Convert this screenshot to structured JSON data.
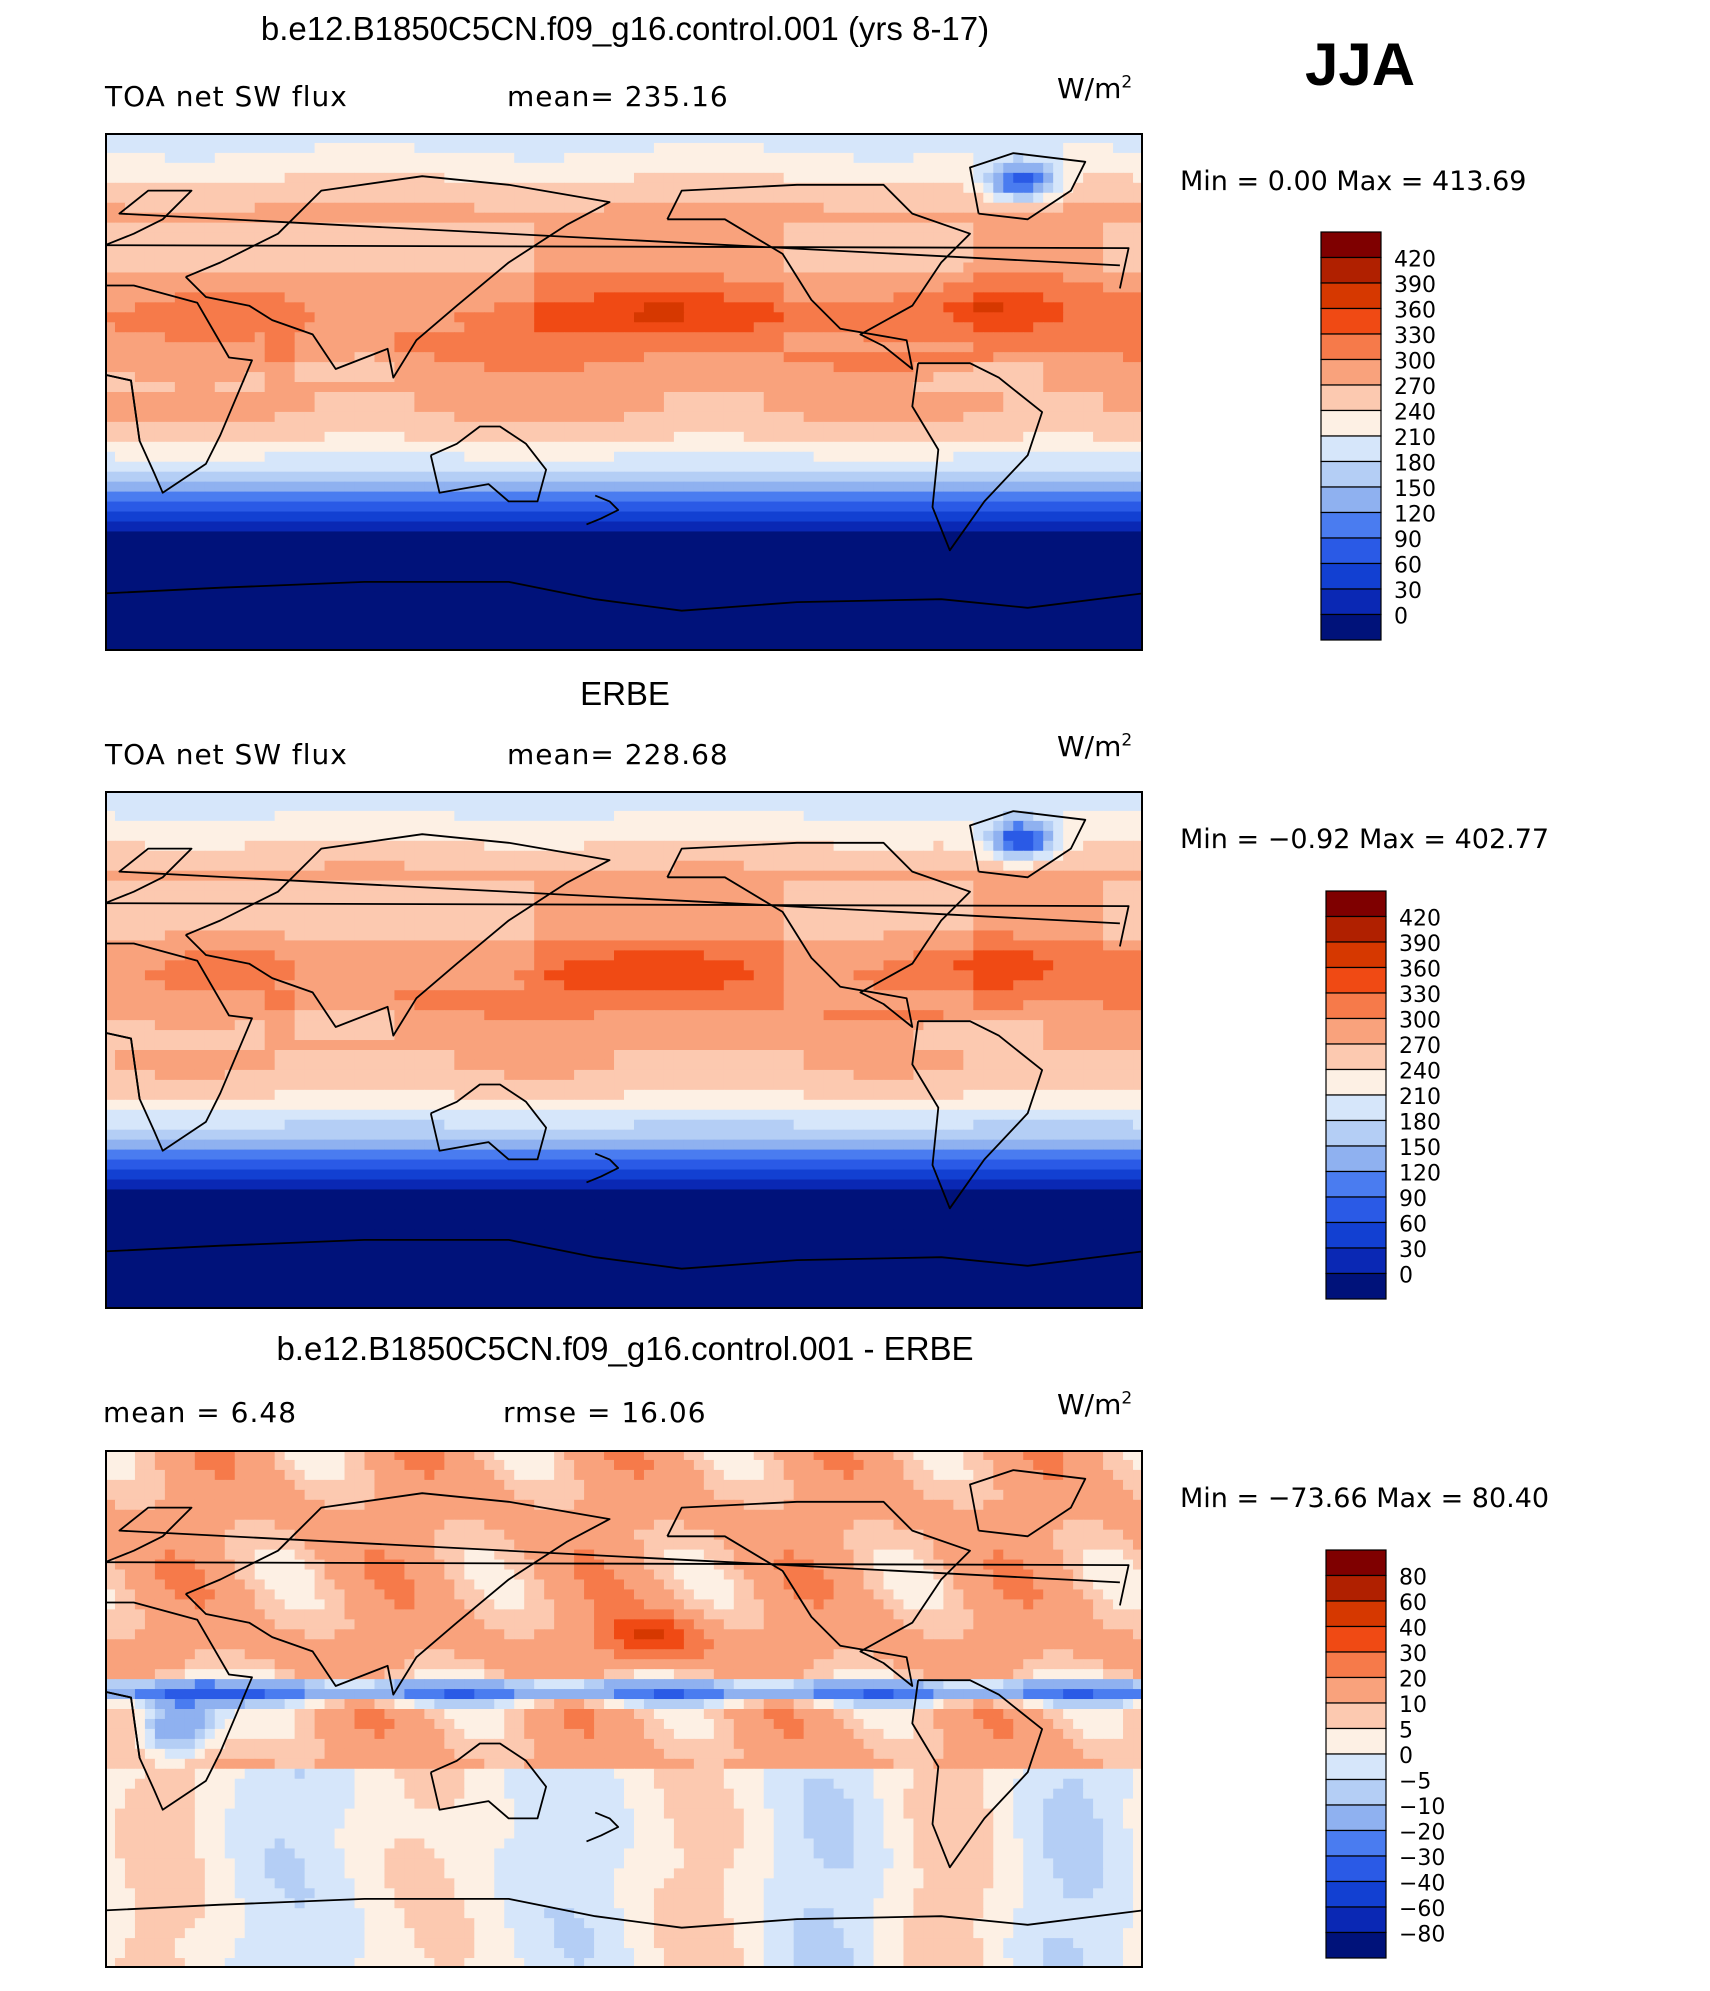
{
  "season": "JJA",
  "panels": [
    {
      "title": "b.e12.B1850C5CN.f09_g16.control.001 (yrs 8-17)",
      "left_label": "TOA net SW flux",
      "stat_label": "mean= 235.16",
      "units": "W/m",
      "units_sup": "2",
      "minmax": "Min =     0.00  Max  =  413.69",
      "legend": [
        "420",
        "390",
        "360",
        "330",
        "300",
        "270",
        "240",
        "210",
        "180",
        "150",
        "120",
        "90",
        "60",
        "30",
        "0"
      ],
      "colors": [
        "#7f0000",
        "#b02000",
        "#d63800",
        "#f04a14",
        "#f67a4a",
        "#f9a27c",
        "#fcc9b0",
        "#fdf0e4",
        "#d6e6fa",
        "#b4cef5",
        "#8fb1f0",
        "#4a7cf0",
        "#2a5ae6",
        "#1240d2",
        "#0a28b4",
        "#00127a"
      ]
    },
    {
      "title": "ERBE",
      "left_label": "TOA net SW flux",
      "stat_label": "mean= 228.68",
      "units": "W/m",
      "units_sup": "2",
      "minmax": "Min =   −0.92  Max  =  402.77",
      "legend": [
        "420",
        "390",
        "360",
        "330",
        "300",
        "270",
        "240",
        "210",
        "180",
        "150",
        "120",
        "90",
        "60",
        "30",
        "0"
      ],
      "colors": [
        "#7f0000",
        "#b02000",
        "#d63800",
        "#f04a14",
        "#f67a4a",
        "#f9a27c",
        "#fcc9b0",
        "#fdf0e4",
        "#d6e6fa",
        "#b4cef5",
        "#8fb1f0",
        "#4a7cf0",
        "#2a5ae6",
        "#1240d2",
        "#0a28b4",
        "#00127a"
      ]
    },
    {
      "title": "b.e12.B1850C5CN.f09_g16.control.001 - ERBE",
      "left_label": "mean =      6.48",
      "stat_label": "rmse =    16.06",
      "units": "W/m",
      "units_sup": "2",
      "minmax": "Min  =  −73.66  Max  =    80.40",
      "legend": [
        "80",
        "60",
        "40",
        "30",
        "20",
        "10",
        "5",
        "0",
        "−5",
        "−10",
        "−20",
        "−30",
        "−40",
        "−60",
        "−80"
      ],
      "colors": [
        "#7f0000",
        "#b02000",
        "#d63800",
        "#f04a14",
        "#f67a4a",
        "#f9a27c",
        "#fcc9b0",
        "#fdf0e4",
        "#d6e6fa",
        "#b4cef5",
        "#8fb1f0",
        "#4a7cf0",
        "#2a5ae6",
        "#1240d2",
        "#0a28b4",
        "#00127a"
      ]
    }
  ]
}
